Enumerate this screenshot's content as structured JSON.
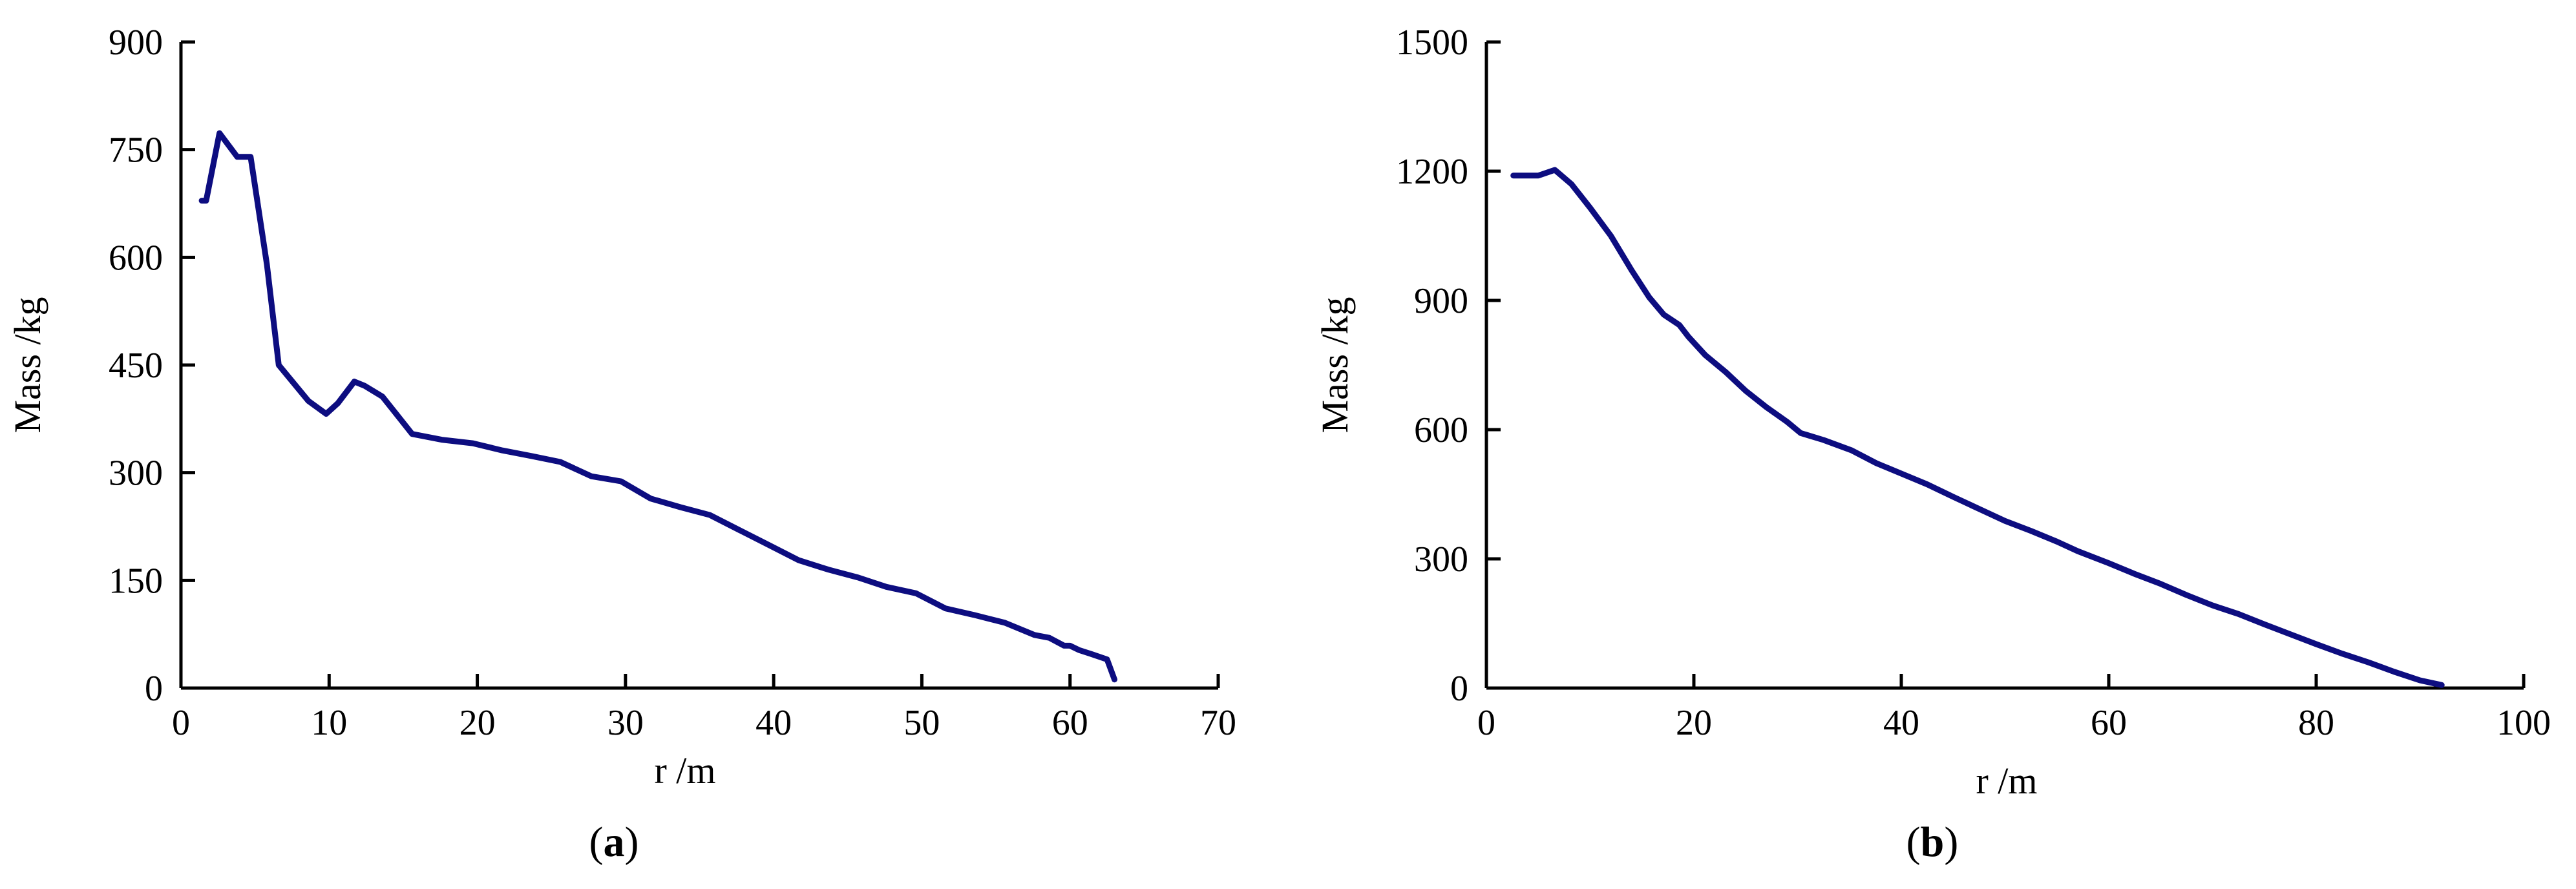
{
  "chart_data": [
    {
      "type": "line",
      "panel": "a",
      "xlabel": "r /m",
      "ylabel": "Mass /kg",
      "xlim": [
        0,
        70
      ],
      "ylim": [
        0,
        900
      ],
      "xticks": [
        0,
        10,
        20,
        30,
        40,
        50,
        60,
        70
      ],
      "yticks": [
        0,
        150,
        300,
        450,
        600,
        750,
        900
      ],
      "color": "#0d0d80",
      "grid": false,
      "series": [
        {
          "x": [
            1.4,
            1.7,
            2.6,
            3.8,
            4.7,
            5.8,
            6.6,
            8.6,
            9.8,
            10.6,
            11.7,
            12.4,
            13.6,
            14.6,
            15.6,
            17.6,
            19.7,
            21.7,
            23.7,
            25.6,
            27.7,
            29.7,
            31.7,
            33.7,
            35.7,
            37.7,
            39.7,
            41.7,
            43.7,
            45.7,
            47.6,
            49.6,
            51.6,
            53.5,
            55.6,
            57.6,
            58.6,
            59.6,
            60.0,
            60.6,
            61.5,
            62.5,
            63.0
          ],
          "y": [
            679,
            679,
            773,
            740,
            740,
            590,
            450,
            400,
            382,
            397,
            427,
            421,
            406,
            380,
            354,
            346,
            341,
            331,
            323,
            315,
            295,
            288,
            264,
            252,
            241,
            220,
            199,
            178,
            165,
            154,
            141,
            132,
            111,
            102,
            91,
            74,
            70,
            59,
            59,
            53,
            47,
            40,
            12
          ]
        }
      ],
      "caption": {
        "open": "(",
        "letter": "a",
        "close": ")"
      }
    },
    {
      "type": "line",
      "panel": "b",
      "xlabel": "r /m",
      "ylabel": "Mass /kg",
      "xlim": [
        0,
        100
      ],
      "ylim": [
        0,
        1500
      ],
      "xticks": [
        0,
        20,
        40,
        60,
        80,
        100
      ],
      "yticks": [
        0,
        300,
        600,
        900,
        1200,
        1500
      ],
      "color": "#0d0d80",
      "grid": false,
      "series": [
        {
          "x": [
            2.6,
            5.0,
            6.6,
            8.2,
            10.0,
            12.0,
            14.0,
            15.7,
            17.1,
            18.6,
            19.5,
            21.1,
            23.1,
            25.0,
            27.0,
            29.0,
            30.3,
            32.5,
            35.2,
            37.6,
            40.0,
            42.5,
            45.0,
            47.5,
            50.0,
            52.5,
            55.0,
            57.0,
            60.0,
            62.5,
            65.0,
            67.5,
            70.0,
            72.5,
            75.0,
            77.5,
            80.0,
            82.5,
            85.0,
            87.5,
            90.0,
            92.1
          ],
          "y": [
            1190,
            1190,
            1203,
            1170,
            1115,
            1050,
            970,
            907,
            867,
            843,
            815,
            773,
            733,
            690,
            652,
            618,
            592,
            576,
            552,
            522,
            498,
            473,
            444,
            416,
            388,
            365,
            340,
            318,
            290,
            265,
            242,
            216,
            192,
            172,
            148,
            125,
            102,
            80,
            60,
            38,
            18,
            7
          ]
        }
      ],
      "caption": {
        "open": "(",
        "letter": "b",
        "close": ")"
      }
    }
  ]
}
